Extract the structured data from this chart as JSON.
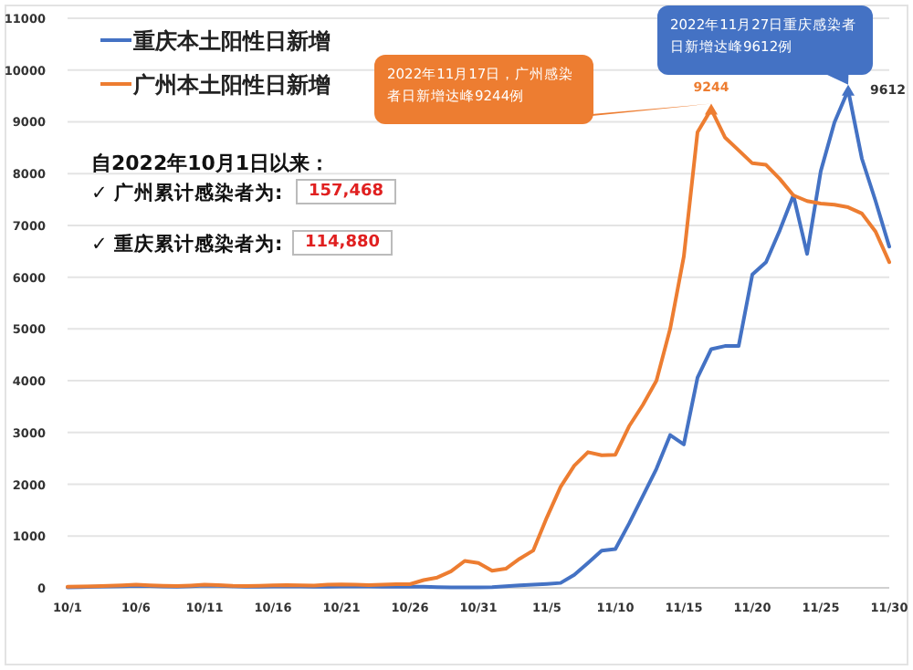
{
  "chart_data": {
    "type": "line",
    "categories": [
      "10/1",
      null,
      null,
      null,
      null,
      "10/6",
      null,
      null,
      null,
      null,
      "10/11",
      null,
      null,
      null,
      null,
      "10/16",
      null,
      null,
      null,
      null,
      "10/21",
      null,
      null,
      null,
      null,
      "10/26",
      null,
      null,
      null,
      null,
      "10/31",
      null,
      null,
      null,
      null,
      "11/5",
      null,
      null,
      null,
      null,
      "11/10",
      null,
      null,
      null,
      null,
      "11/15",
      null,
      null,
      null,
      null,
      "11/20",
      null,
      null,
      null,
      null,
      "11/25",
      null,
      null,
      null,
      null,
      "11/30"
    ],
    "series": [
      {
        "name": "重庆本土阳性日新增",
        "color": "#4472c4",
        "values": [
          10,
          15,
          20,
          25,
          30,
          40,
          35,
          25,
          20,
          30,
          45,
          40,
          30,
          20,
          20,
          25,
          30,
          25,
          20,
          20,
          25,
          30,
          25,
          20,
          20,
          20,
          20,
          15,
          10,
          10,
          10,
          15,
          30,
          50,
          60,
          75,
          95,
          250,
          480,
          720,
          750,
          1240,
          1770,
          2300,
          2950,
          2770,
          4060,
          4610,
          4670,
          4670,
          6050,
          6290,
          6900,
          7580,
          6450,
          8050,
          8990,
          9612,
          8290,
          7470,
          6590
        ],
        "value_labels": [
          null,
          null,
          null,
          null,
          null,
          null,
          null,
          null,
          null,
          null,
          null,
          null,
          null,
          null,
          null,
          null,
          null,
          null,
          null,
          null,
          null,
          null,
          null,
          null,
          null,
          null,
          null,
          null,
          null,
          null,
          null,
          null,
          null,
          null,
          null,
          null,
          null,
          null,
          null,
          null,
          null,
          null,
          null,
          null,
          null,
          null,
          null,
          null,
          null,
          null,
          null,
          null,
          null,
          null,
          null,
          null,
          null,
          "9612",
          null,
          null,
          null
        ]
      },
      {
        "name": "广州本土阳性日新增",
        "color": "#ed7d31",
        "values": [
          20,
          25,
          30,
          40,
          50,
          60,
          50,
          40,
          35,
          45,
          60,
          55,
          40,
          35,
          40,
          50,
          55,
          50,
          45,
          60,
          65,
          60,
          55,
          60,
          70,
          70,
          150,
          200,
          320,
          520,
          480,
          330,
          370,
          560,
          720,
          1360,
          1950,
          2360,
          2620,
          2560,
          2570,
          3120,
          3530,
          4000,
          5000,
          6400,
          8800,
          9244,
          8700,
          8450,
          8200,
          8170,
          7900,
          7580,
          7470,
          7420,
          7400,
          7350,
          7230,
          6880,
          6290
        ],
        "value_labels": [
          null,
          null,
          null,
          null,
          null,
          null,
          null,
          null,
          null,
          null,
          null,
          null,
          null,
          null,
          null,
          null,
          null,
          null,
          null,
          null,
          null,
          null,
          null,
          null,
          null,
          null,
          null,
          null,
          null,
          null,
          null,
          null,
          null,
          null,
          null,
          null,
          null,
          null,
          null,
          null,
          null,
          null,
          null,
          null,
          null,
          null,
          null,
          "9244",
          null,
          null,
          null,
          null,
          null,
          null,
          null,
          null,
          null,
          null,
          null,
          null,
          null
        ]
      }
    ],
    "ylim": [
      0,
      11000
    ],
    "yticks": [
      0,
      1000,
      2000,
      3000,
      4000,
      5000,
      6000,
      7000,
      8000,
      9000,
      10000,
      11000
    ],
    "grid": "y",
    "legend": "top left",
    "annotations": [
      "2022年11月17日，广州感染者日新增达峰9244例",
      "2022年11月27日重庆感染者日新增达峰9612例",
      "自2022年10月1日以来：",
      "✓ 广州累计感染者为:",
      "157,468",
      "✓ 重庆累计感染者为:",
      "114,880"
    ]
  }
}
